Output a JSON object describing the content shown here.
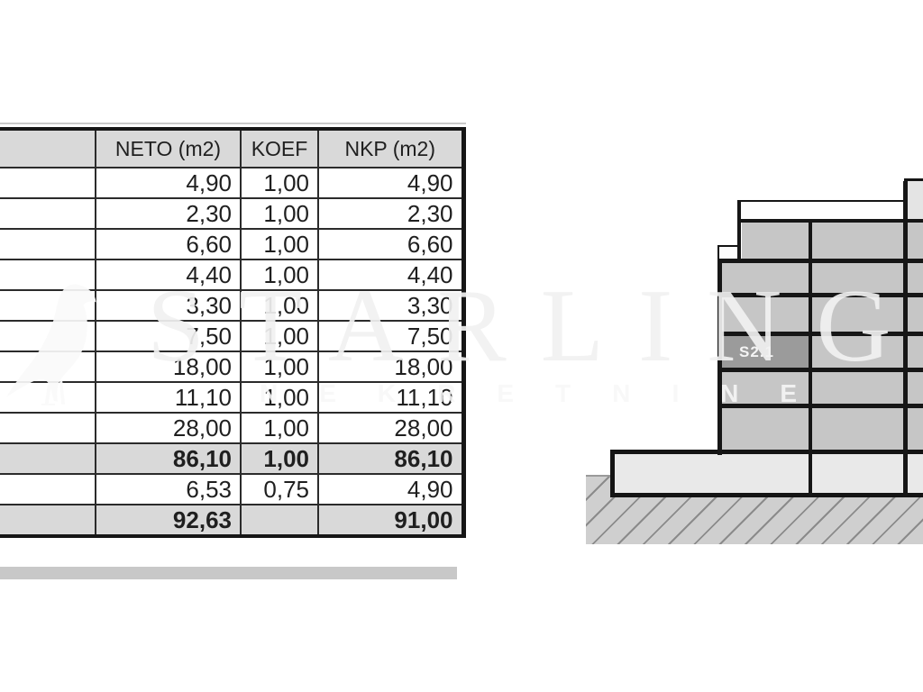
{
  "watermark": {
    "brand": "STARLING",
    "tagline": "NEKRETNINE",
    "logo": "starling-bird"
  },
  "table": {
    "headers": [
      "",
      "NETO (m2)",
      "KOEF",
      "NKP (m2)"
    ],
    "rows": [
      {
        "label": "",
        "neto": "4,90",
        "koef": "1,00",
        "nkp": "4,90",
        "emphasis": false
      },
      {
        "label": "",
        "neto": "2,30",
        "koef": "1,00",
        "nkp": "2,30",
        "emphasis": false
      },
      {
        "label": "",
        "neto": "6,60",
        "koef": "1,00",
        "nkp": "6,60",
        "emphasis": false
      },
      {
        "label": "",
        "neto": "4,40",
        "koef": "1,00",
        "nkp": "4,40",
        "emphasis": false
      },
      {
        "label": "",
        "neto": "3,30",
        "koef": "1,00",
        "nkp": "3,30",
        "emphasis": false
      },
      {
        "label": "",
        "neto": "7,50",
        "koef": "1,00",
        "nkp": "7,50",
        "emphasis": false
      },
      {
        "label": "",
        "neto": "18,00",
        "koef": "1,00",
        "nkp": "18,00",
        "emphasis": false
      },
      {
        "label": "",
        "neto": "11,10",
        "koef": "1,00",
        "nkp": "11,10",
        "emphasis": false
      },
      {
        "label": "",
        "neto": "28,00",
        "koef": "1,00",
        "nkp": "28,00",
        "emphasis": false
      },
      {
        "label": "",
        "neto": "86,10",
        "koef": "1,00",
        "nkp": "86,10",
        "emphasis": true
      },
      {
        "label": "",
        "neto": "6,53",
        "koef": "0,75",
        "nkp": "4,90",
        "emphasis": false
      },
      {
        "label": "",
        "neto": "92,63",
        "koef": "",
        "nkp": "91,00",
        "emphasis": true
      }
    ]
  },
  "diagram": {
    "unit_label": "S2.1"
  },
  "colors": {
    "line_black": "#161616",
    "floor_gray": "#c6c6c6",
    "unit_cell_gray": "#9b9b9b",
    "podium_gray": "#e9e9e9",
    "ground_gray": "#cfcfcf",
    "hatch_line_gray": "#8b8b8b",
    "table_band_gray": "#d9d9d9",
    "watermark_gray": "#f1f1f1"
  }
}
